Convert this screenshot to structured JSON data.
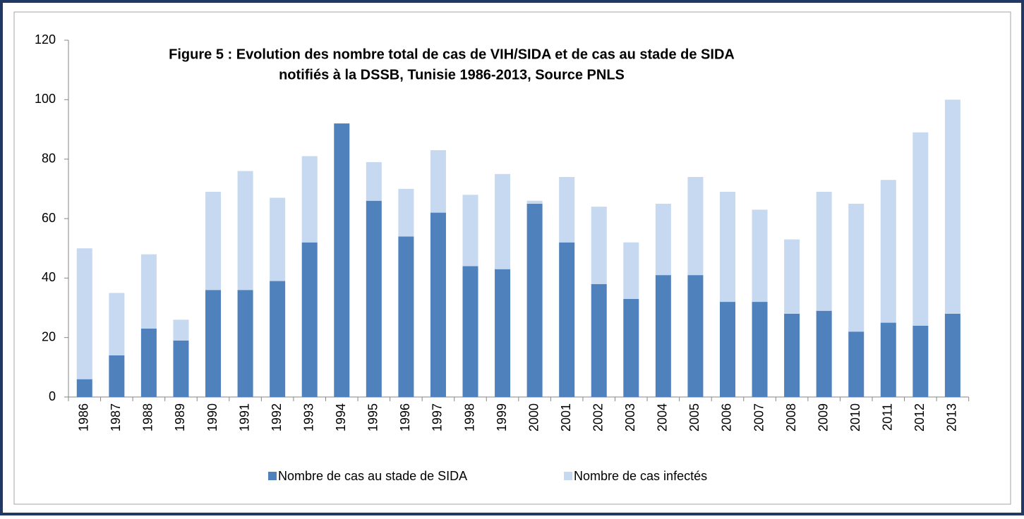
{
  "chart_data": {
    "type": "stacked-bar",
    "title": [
      "Figure 5 : Evolution des nombre total de cas de VIH/SIDA et  de cas au stade de SIDA",
      "notifiés à la DSSB, Tunisie 1986-2013, Source PNLS"
    ],
    "categories": [
      "1986",
      "1987",
      "1988",
      "1989",
      "1990",
      "1991",
      "1992",
      "1993",
      "1994",
      "1995",
      "1996",
      "1997",
      "1998",
      "1999",
      "2000",
      "2001",
      "2002",
      "2003",
      "2004",
      "2005",
      "2006",
      "2007",
      "2008",
      "2009",
      "2010",
      "2011",
      "2012",
      "2013"
    ],
    "series": [
      {
        "name": "Nombre de cas au stade de SIDA",
        "color": "#4f81bd",
        "values": [
          6,
          14,
          23,
          19,
          36,
          36,
          39,
          52,
          92,
          66,
          54,
          62,
          44,
          43,
          65,
          52,
          38,
          33,
          41,
          41,
          32,
          32,
          28,
          29,
          22,
          25,
          24,
          28
        ]
      },
      {
        "name": "Nombre de cas infectés",
        "color": "#c6d9f1",
        "values": [
          44,
          21,
          25,
          7,
          33,
          40,
          28,
          29,
          0,
          13,
          16,
          21,
          24,
          32,
          1,
          22,
          26,
          19,
          24,
          33,
          37,
          31,
          25,
          40,
          43,
          48,
          65,
          72
        ]
      }
    ],
    "ylim": [
      0,
      120
    ],
    "yticks": [
      0,
      20,
      40,
      60,
      80,
      100,
      120
    ],
    "legend": "bottom"
  }
}
